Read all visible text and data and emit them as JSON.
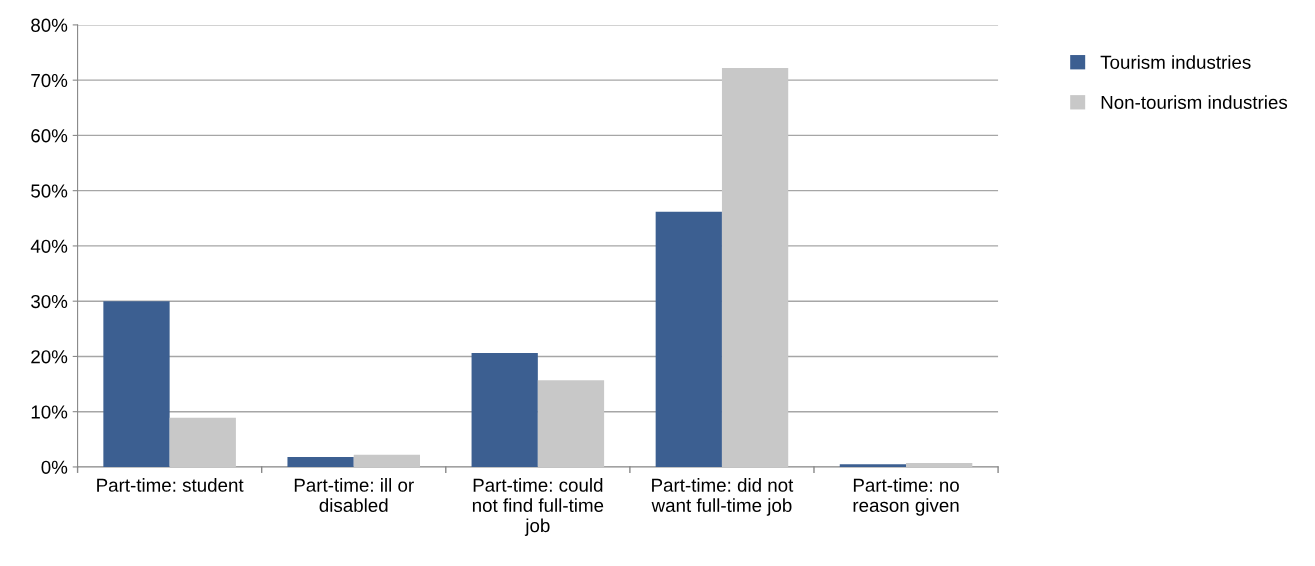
{
  "chart_data": {
    "type": "bar",
    "categories": [
      "Part-time: student",
      "Part-time: ill or\ndisabled",
      "Part-time: could\nnot find full-time\njob",
      "Part-time: did not\nwant full-time job",
      "Part-time: no\nreason given"
    ],
    "series": [
      {
        "name": "Tourism industries",
        "color": "#3c5f91",
        "values": [
          30.0,
          1.8,
          20.6,
          46.2,
          0.5
        ]
      },
      {
        "name": "Non-tourism industries",
        "color": "#c8c8c8",
        "values": [
          8.9,
          2.2,
          15.7,
          72.2,
          0.7
        ]
      }
    ],
    "ylim": [
      0,
      80
    ],
    "yticks": [
      {
        "value": 0,
        "label": "0%"
      },
      {
        "value": 10,
        "label": "10%"
      },
      {
        "value": 20,
        "label": "20%"
      },
      {
        "value": 30,
        "label": "30%"
      },
      {
        "value": 40,
        "label": "40%"
      },
      {
        "value": 50,
        "label": "50%"
      },
      {
        "value": 60,
        "label": "60%"
      },
      {
        "value": 70,
        "label": "70%"
      },
      {
        "value": 80,
        "label": "80%"
      }
    ],
    "grid": "y",
    "legend": "top right"
  }
}
